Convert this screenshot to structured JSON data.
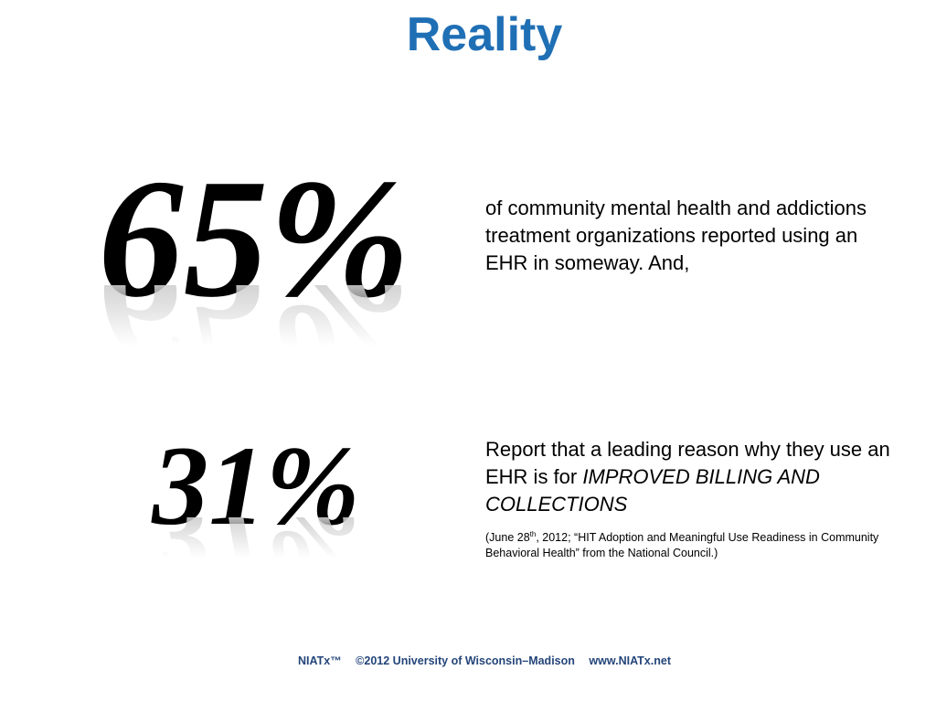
{
  "slide": {
    "title": "Reality",
    "stat1": {
      "value": "65%",
      "text": "of community mental health and addictions treatment organizations reported using an EHR in someway. And,"
    },
    "stat2": {
      "value": "31%",
      "text_plain": "Report that a leading reason why they use an EHR is for ",
      "text_emphasis": "IMPROVED BILLING AND COLLECTIONS"
    },
    "citation": {
      "open": "(June 28",
      "sup": "th",
      "rest1": ", 2012; “HIT Adoption and Meaningful Use Readiness in Community Behavioral Health",
      "rest2": "” from the National Council.)"
    },
    "footer": {
      "org": "NIATx™",
      "copyright": "©2012 University of Wisconsin–Madison",
      "url": "www.NIATx.net"
    }
  }
}
